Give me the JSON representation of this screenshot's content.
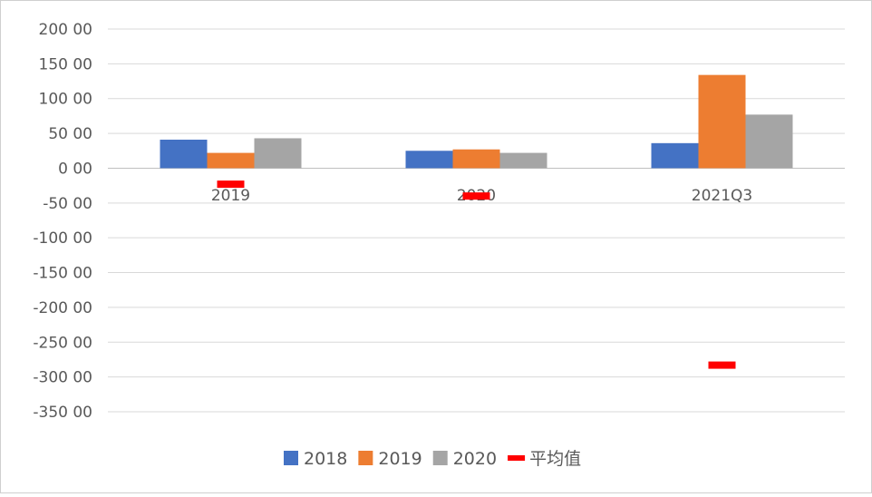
{
  "chart_data": {
    "type": "bar",
    "categories": [
      "2019",
      "2020",
      "2021Q3"
    ],
    "series": [
      {
        "name": "2018",
        "kind": "bar",
        "color": "#4472C4",
        "values": [
          41,
          25,
          36
        ]
      },
      {
        "name": "2019",
        "kind": "bar",
        "color": "#ED7D31",
        "values": [
          22,
          27,
          134
        ]
      },
      {
        "name": "2020",
        "kind": "bar",
        "color": "#A5A5A5",
        "values": [
          43,
          22,
          77
        ]
      },
      {
        "name": "平均值",
        "kind": "marker",
        "color": "#FF0000",
        "values": [
          -23,
          -40,
          -283
        ]
      }
    ],
    "ylim": [
      -350,
      200
    ],
    "ytick_step": 50,
    "ytick_labels": [
      "200 00",
      "150 00",
      "100 00",
      "50 00",
      "0 00",
      "-50 00",
      "-100 00",
      "-150 00",
      "-200 00",
      "-250 00",
      "-300 00",
      "-350 00"
    ],
    "grid": true,
    "legend_position": "bottom",
    "title": "",
    "xlabel": "",
    "ylabel": ""
  }
}
